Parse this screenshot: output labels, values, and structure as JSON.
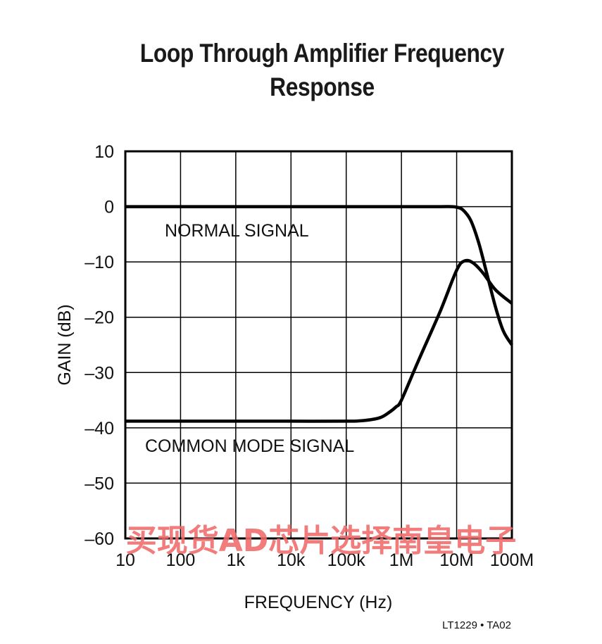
{
  "chart_data": {
    "type": "line",
    "title": "Loop Through Amplifier Frequency Response",
    "title_lines": [
      "Loop Through Amplifier Frequency",
      "Response"
    ],
    "xlabel": "FREQUENCY (Hz)",
    "ylabel": "GAIN (dB)",
    "x_scale": "log",
    "xlim": [
      10,
      100000000
    ],
    "ylim": [
      -60,
      10
    ],
    "grid": true,
    "x_ticks": [
      10,
      100,
      1000,
      10000,
      100000,
      1000000,
      10000000,
      100000000
    ],
    "x_tick_labels": [
      "10",
      "100",
      "1k",
      "10k",
      "100k",
      "1M",
      "10M",
      "100M"
    ],
    "y_ticks": [
      10,
      0,
      -10,
      -20,
      -30,
      -40,
      -50,
      -60
    ],
    "y_tick_labels": [
      "10",
      "0",
      "–10",
      "–20",
      "–30",
      "–40",
      "–50",
      "–60"
    ],
    "series": [
      {
        "name": "NORMAL SIGNAL",
        "x": [
          10,
          100,
          1000,
          10000,
          100000,
          1000000,
          5000000,
          8000000,
          10000000,
          13000000,
          18000000,
          25000000,
          35000000,
          50000000,
          70000000,
          100000000
        ],
        "y": [
          0,
          0,
          0,
          0,
          0,
          0,
          0,
          0,
          -0.1,
          -0.6,
          -2.5,
          -6.5,
          -12,
          -18,
          -22.5,
          -25
        ]
      },
      {
        "name": "COMMON MODE SIGNAL",
        "x": [
          10,
          100,
          1000,
          10000,
          100000,
          200000,
          400000,
          600000,
          800000,
          1000000,
          2000000,
          5000000,
          10000000,
          14000000,
          20000000,
          30000000,
          50000000,
          100000000
        ],
        "y": [
          -38.8,
          -38.8,
          -38.8,
          -38.8,
          -38.8,
          -38.7,
          -38.2,
          -37.2,
          -36.2,
          -35,
          -28,
          -19,
          -11.5,
          -9.8,
          -10.2,
          -12,
          -15,
          -17.5
        ]
      }
    ],
    "annotations": [
      "NORMAL SIGNAL",
      "COMMON MODE SIGNAL"
    ]
  },
  "footer": {
    "credit": "LT1229 • TA02"
  },
  "watermark": {
    "text": "买现货AD芯片选择南皇电子",
    "color": "#f06a6a"
  }
}
